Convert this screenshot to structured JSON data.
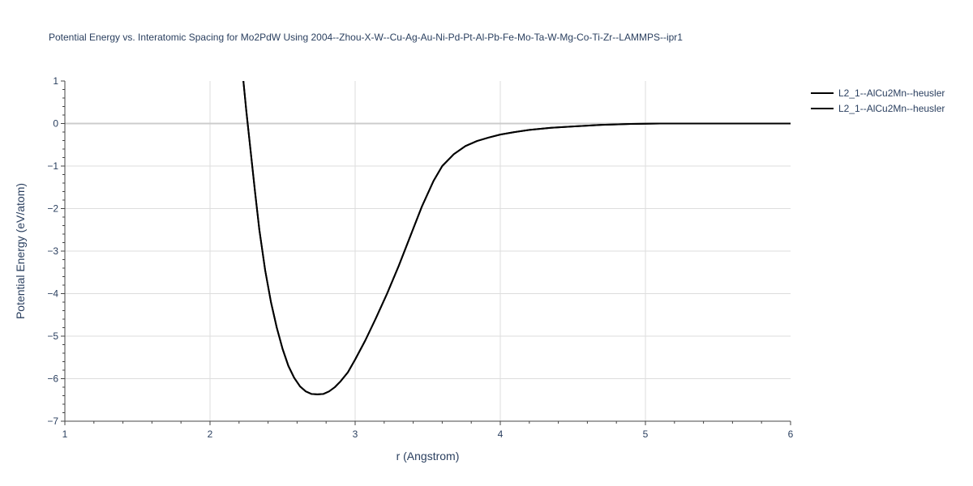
{
  "chart_data": {
    "type": "line",
    "title": "Potential Energy vs. Interatomic Spacing for Mo2PdW Using 2004--Zhou-X-W--Cu-Ag-Au-Ni-Pd-Pt-Al-Pb-Fe-Mo-Ta-W-Mg-Co-Ti-Zr--LAMMPS--ipr1",
    "xlabel": "r (Angstrom)",
    "ylabel": "Potential Energy (eV/atom)",
    "xlim": [
      1,
      6
    ],
    "ylim": [
      -7,
      1
    ],
    "xticks": [
      "1",
      "2",
      "3",
      "4",
      "5",
      "6"
    ],
    "yticks": [
      "1",
      "0",
      "−1",
      "−2",
      "−3",
      "−4",
      "−5",
      "−6",
      "−7"
    ],
    "grid": true,
    "legend_position": "top-right",
    "series": [
      {
        "name": "L2_1--AlCu2Mn--heusler",
        "color": "#000000",
        "x": [
          2.23,
          2.25,
          2.28,
          2.31,
          2.34,
          2.38,
          2.42,
          2.46,
          2.5,
          2.54,
          2.58,
          2.62,
          2.66,
          2.7,
          2.74,
          2.78,
          2.82,
          2.86,
          2.9,
          2.95,
          3.0,
          3.07,
          3.14,
          3.22,
          3.3,
          3.38,
          3.46,
          3.54,
          3.6,
          3.68,
          3.76,
          3.84,
          3.92,
          4.0,
          4.1,
          4.2,
          4.35,
          4.5,
          4.7,
          4.9,
          5.1,
          5.3,
          5.6,
          6.0
        ],
        "y": [
          1.0,
          0.3,
          -0.65,
          -1.6,
          -2.5,
          -3.45,
          -4.2,
          -4.8,
          -5.3,
          -5.7,
          -5.98,
          -6.18,
          -6.3,
          -6.36,
          -6.37,
          -6.36,
          -6.3,
          -6.2,
          -6.06,
          -5.85,
          -5.55,
          -5.1,
          -4.6,
          -4.0,
          -3.35,
          -2.65,
          -1.95,
          -1.35,
          -1.0,
          -0.72,
          -0.53,
          -0.41,
          -0.33,
          -0.26,
          -0.2,
          -0.15,
          -0.1,
          -0.07,
          -0.03,
          -0.01,
          0.0,
          0.0,
          0.0,
          0.0
        ]
      },
      {
        "name": "L2_1--AlCu2Mn--heusler",
        "color": "#000000",
        "x": [
          2.23,
          2.25,
          2.28,
          2.31,
          2.34,
          2.38,
          2.42,
          2.46,
          2.5,
          2.54,
          2.58,
          2.62,
          2.66,
          2.7,
          2.74,
          2.78,
          2.82,
          2.86,
          2.9,
          2.95,
          3.0,
          3.07,
          3.14,
          3.22,
          3.3,
          3.38,
          3.46,
          3.54,
          3.6,
          3.68,
          3.76,
          3.84,
          3.92,
          4.0,
          4.1,
          4.2,
          4.35,
          4.5,
          4.7,
          4.9,
          5.1,
          5.3,
          5.6,
          6.0
        ],
        "y": [
          1.0,
          0.3,
          -0.65,
          -1.6,
          -2.5,
          -3.45,
          -4.2,
          -4.8,
          -5.3,
          -5.7,
          -5.98,
          -6.18,
          -6.3,
          -6.36,
          -6.37,
          -6.36,
          -6.3,
          -6.2,
          -6.06,
          -5.85,
          -5.55,
          -5.1,
          -4.6,
          -4.0,
          -3.35,
          -2.65,
          -1.95,
          -1.35,
          -1.0,
          -0.72,
          -0.53,
          -0.41,
          -0.33,
          -0.26,
          -0.2,
          -0.15,
          -0.1,
          -0.07,
          -0.03,
          -0.01,
          0.0,
          0.0,
          0.0,
          0.0
        ]
      }
    ]
  }
}
